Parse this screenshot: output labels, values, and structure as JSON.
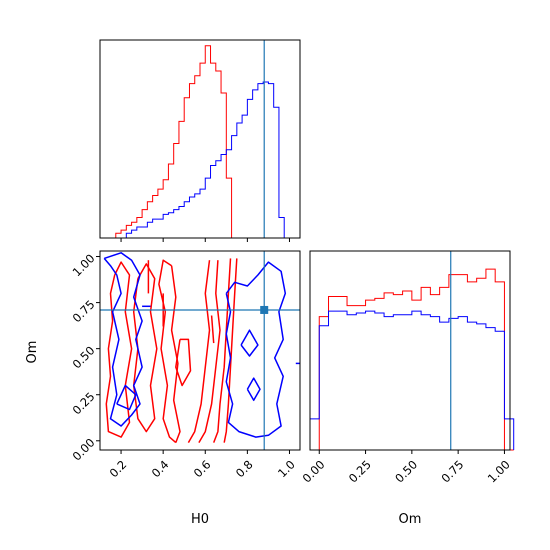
{
  "chart_data": {
    "type": "corner",
    "parameters": [
      "H0",
      "Om"
    ],
    "truth": {
      "H0": 0.88,
      "Om": 0.71
    },
    "colors": {
      "red": "#ff0000",
      "blue": "#0000ff",
      "truth": "#1f77b4"
    },
    "axes": {
      "H0": {
        "label": "H0",
        "lim": [
          0.1,
          1.05
        ],
        "ticks": [
          0.2,
          0.4,
          0.6,
          0.8,
          1.0
        ],
        "tick_labels": [
          "0.2",
          "0.4",
          "0.6",
          "0.8",
          "1.0"
        ]
      },
      "Om": {
        "label": "Om",
        "lim": [
          -0.05,
          1.03
        ],
        "ticks": [
          0.0,
          0.25,
          0.5,
          0.75,
          1.0
        ],
        "tick_labels": [
          "0.00",
          "0.25",
          "0.50",
          "0.75",
          "1.00"
        ]
      }
    },
    "hist_H0": {
      "bins": [
        0.1,
        0.125,
        0.15,
        0.175,
        0.2,
        0.225,
        0.25,
        0.275,
        0.3,
        0.325,
        0.35,
        0.375,
        0.4,
        0.425,
        0.45,
        0.475,
        0.5,
        0.525,
        0.55,
        0.575,
        0.6,
        0.625,
        0.65,
        0.675,
        0.7,
        0.725,
        0.75,
        0.775,
        0.8,
        0.825,
        0.85,
        0.875,
        0.9,
        0.925,
        0.95,
        0.975,
        1.0,
        1.025,
        1.05
      ],
      "series": [
        {
          "color": "red",
          "counts": [
            0,
            0,
            0,
            3,
            5,
            8,
            10,
            13,
            18,
            23,
            27,
            31,
            37,
            47,
            60,
            74,
            89,
            98,
            103,
            111,
            122,
            111,
            106,
            92,
            38,
            0,
            0,
            0,
            0,
            0,
            0,
            0,
            0,
            0,
            0,
            0,
            0,
            0
          ]
        },
        {
          "color": "blue",
          "counts": [
            0,
            0,
            0,
            0,
            0,
            3,
            5,
            7,
            7,
            10,
            12,
            12,
            15,
            16,
            18,
            20,
            23,
            26,
            28,
            31,
            38,
            46,
            49,
            53,
            56,
            65,
            73,
            78,
            88,
            94,
            98,
            99,
            98,
            83,
            13,
            0,
            0,
            0
          ]
        }
      ]
    },
    "hist_Om": {
      "bins": [
        -0.05,
        0.0,
        0.05,
        0.1,
        0.15,
        0.2,
        0.25,
        0.3,
        0.35,
        0.4,
        0.45,
        0.5,
        0.55,
        0.6,
        0.65,
        0.7,
        0.75,
        0.8,
        0.85,
        0.9,
        0.95,
        1.0,
        1.05
      ],
      "series": [
        {
          "color": "red",
          "counts": [
            0,
            73,
            84,
            84,
            79,
            79,
            82,
            83,
            86,
            85,
            87,
            82,
            89,
            85,
            89,
            96,
            96,
            92,
            94,
            99,
            92,
            0
          ]
        },
        {
          "color": "blue",
          "counts": [
            17,
            68,
            76,
            76,
            74,
            75,
            76,
            75,
            73,
            74,
            74,
            76,
            74,
            73,
            70,
            72,
            73,
            70,
            69,
            67,
            65,
            17
          ]
        }
      ]
    },
    "contours": [
      {
        "color": "red",
        "lines": [
          [
            [
              0.17,
              0.9
            ],
            [
              0.15,
              0.8
            ],
            [
              0.16,
              0.65
            ],
            [
              0.14,
              0.5
            ],
            [
              0.15,
              0.35
            ],
            [
              0.13,
              0.2
            ],
            [
              0.14,
              0.05
            ],
            [
              0.2,
              0.02
            ],
            [
              0.24,
              0.1
            ],
            [
              0.22,
              0.3
            ],
            [
              0.25,
              0.5
            ],
            [
              0.22,
              0.7
            ],
            [
              0.24,
              0.9
            ],
            [
              0.2,
              0.97
            ],
            [
              0.17,
              0.9
            ]
          ],
          [
            [
              0.28,
              0.88
            ],
            [
              0.26,
              0.7
            ],
            [
              0.28,
              0.5
            ],
            [
              0.26,
              0.3
            ],
            [
              0.28,
              0.12
            ],
            [
              0.32,
              0.05
            ],
            [
              0.36,
              0.12
            ],
            [
              0.34,
              0.3
            ],
            [
              0.37,
              0.5
            ],
            [
              0.34,
              0.7
            ],
            [
              0.36,
              0.88
            ],
            [
              0.32,
              0.96
            ],
            [
              0.28,
              0.88
            ]
          ],
          [
            [
              0.48,
              0.55
            ],
            [
              0.46,
              0.4
            ],
            [
              0.49,
              0.3
            ],
            [
              0.53,
              0.38
            ],
            [
              0.52,
              0.55
            ],
            [
              0.48,
              0.55
            ]
          ],
          [
            [
              0.33,
              0.98
            ],
            [
              0.33,
              0.8
            ]
          ],
          [
            [
              0.4,
              0.8
            ],
            [
              0.4,
              0.62
            ]
          ],
          [
            [
              0.62,
              0.98
            ],
            [
              0.6,
              0.8
            ],
            [
              0.62,
              0.6
            ],
            [
              0.6,
              0.4
            ],
            [
              0.58,
              0.2
            ],
            [
              0.55,
              0.05
            ],
            [
              0.52,
              -0.01
            ]
          ],
          [
            [
              0.66,
              0.98
            ],
            [
              0.65,
              0.8
            ],
            [
              0.67,
              0.6
            ],
            [
              0.65,
              0.4
            ],
            [
              0.63,
              0.2
            ],
            [
              0.6,
              0.05
            ],
            [
              0.57,
              -0.01
            ]
          ],
          [
            [
              0.72,
              0.99
            ],
            [
              0.71,
              0.8
            ],
            [
              0.7,
              0.6
            ],
            [
              0.69,
              0.4
            ],
            [
              0.67,
              0.2
            ],
            [
              0.66,
              0.05
            ],
            [
              0.64,
              -0.01
            ]
          ],
          [
            [
              0.75,
              0.99
            ],
            [
              0.74,
              0.8
            ],
            [
              0.73,
              0.6
            ],
            [
              0.72,
              0.4
            ],
            [
              0.71,
              0.2
            ],
            [
              0.7,
              0.05
            ],
            [
              0.69,
              -0.01
            ]
          ],
          [
            [
              0.63,
              0.68
            ],
            [
              0.64,
              0.53
            ]
          ],
          [
            [
              0.44,
              0.95
            ],
            [
              0.46,
              0.78
            ],
            [
              0.44,
              0.6
            ],
            [
              0.47,
              0.42
            ],
            [
              0.45,
              0.22
            ],
            [
              0.48,
              0.05
            ],
            [
              0.46,
              -0.01
            ]
          ],
          [
            [
              0.44,
              0.95
            ],
            [
              0.4,
              0.98
            ],
            [
              0.38,
              0.85
            ],
            [
              0.41,
              0.7
            ],
            [
              0.39,
              0.5
            ],
            [
              0.42,
              0.3
            ],
            [
              0.4,
              0.12
            ],
            [
              0.43,
              0.02
            ],
            [
              0.46,
              -0.01
            ]
          ]
        ]
      },
      {
        "color": "blue",
        "lines": [
          [
            [
              0.12,
              0.99
            ],
            [
              0.15,
              0.95
            ],
            [
              0.18,
              0.9
            ],
            [
              0.2,
              0.8
            ],
            [
              0.16,
              0.7
            ],
            [
              0.19,
              0.55
            ],
            [
              0.16,
              0.4
            ],
            [
              0.18,
              0.25
            ],
            [
              0.15,
              0.12
            ],
            [
              0.2,
              0.08
            ],
            [
              0.25,
              0.14
            ],
            [
              0.29,
              0.2
            ],
            [
              0.26,
              0.3
            ],
            [
              0.3,
              0.4
            ],
            [
              0.27,
              0.55
            ],
            [
              0.3,
              0.65
            ],
            [
              0.26,
              0.78
            ],
            [
              0.29,
              0.9
            ],
            [
              0.25,
              0.98
            ],
            [
              0.2,
              1.02
            ],
            [
              0.12,
              0.99
            ]
          ],
          [
            [
              0.18,
              0.2
            ],
            [
              0.24,
              0.17
            ],
            [
              0.27,
              0.25
            ],
            [
              0.22,
              0.3
            ],
            [
              0.18,
              0.2
            ]
          ],
          [
            [
              0.3,
              0.73
            ],
            [
              0.34,
              0.73
            ]
          ],
          [
            [
              0.7,
              0.8
            ],
            [
              0.72,
              0.7
            ],
            [
              0.7,
              0.58
            ],
            [
              0.72,
              0.45
            ],
            [
              0.7,
              0.32
            ],
            [
              0.73,
              0.2
            ],
            [
              0.71,
              0.1
            ],
            [
              0.76,
              0.05
            ],
            [
              0.84,
              0.02
            ],
            [
              0.9,
              0.03
            ],
            [
              0.96,
              0.08
            ],
            [
              0.94,
              0.2
            ],
            [
              0.97,
              0.35
            ],
            [
              0.93,
              0.45
            ],
            [
              0.97,
              0.55
            ],
            [
              0.95,
              0.7
            ],
            [
              0.98,
              0.8
            ],
            [
              0.96,
              0.92
            ],
            [
              0.9,
              0.97
            ],
            [
              0.85,
              0.9
            ],
            [
              0.8,
              0.84
            ],
            [
              0.74,
              0.86
            ],
            [
              0.7,
              0.8
            ]
          ],
          [
            [
              0.77,
              0.52
            ],
            [
              0.81,
              0.46
            ],
            [
              0.85,
              0.52
            ],
            [
              0.81,
              0.6
            ],
            [
              0.77,
              0.52
            ]
          ],
          [
            [
              0.8,
              0.28
            ],
            [
              0.83,
              0.22
            ],
            [
              0.86,
              0.28
            ],
            [
              0.83,
              0.34
            ],
            [
              0.8,
              0.28
            ]
          ],
          [
            [
              1.03,
              0.42
            ],
            [
              1.05,
              0.42
            ]
          ]
        ]
      }
    ]
  }
}
